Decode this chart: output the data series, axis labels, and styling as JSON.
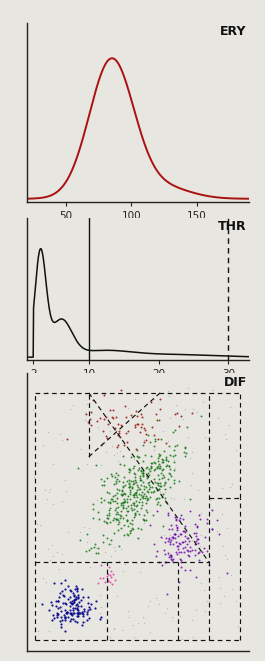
{
  "fig_width": 2.65,
  "fig_height": 6.61,
  "bg_color": "#e8e6e0",
  "panel1_label": "ERY",
  "panel1_xlabel_ticks": [
    50,
    100,
    150
  ],
  "panel1_curve_color": "#aa1111",
  "panel2_label": "THR",
  "panel2_xlabel_ticks": [
    2,
    10,
    20,
    30
  ],
  "panel2_curve_color": "#111111",
  "panel3_label": "DIF",
  "cluster_neutrophils_color": "#1a7a1a",
  "cluster_lymphocytes_color": "#00008B",
  "cluster_monocytes_color": "#6600aa",
  "cluster_eosinophils_color": "#991111",
  "cluster_basophils_color": "#dd44aa",
  "scatter_noise_color": "#555555"
}
